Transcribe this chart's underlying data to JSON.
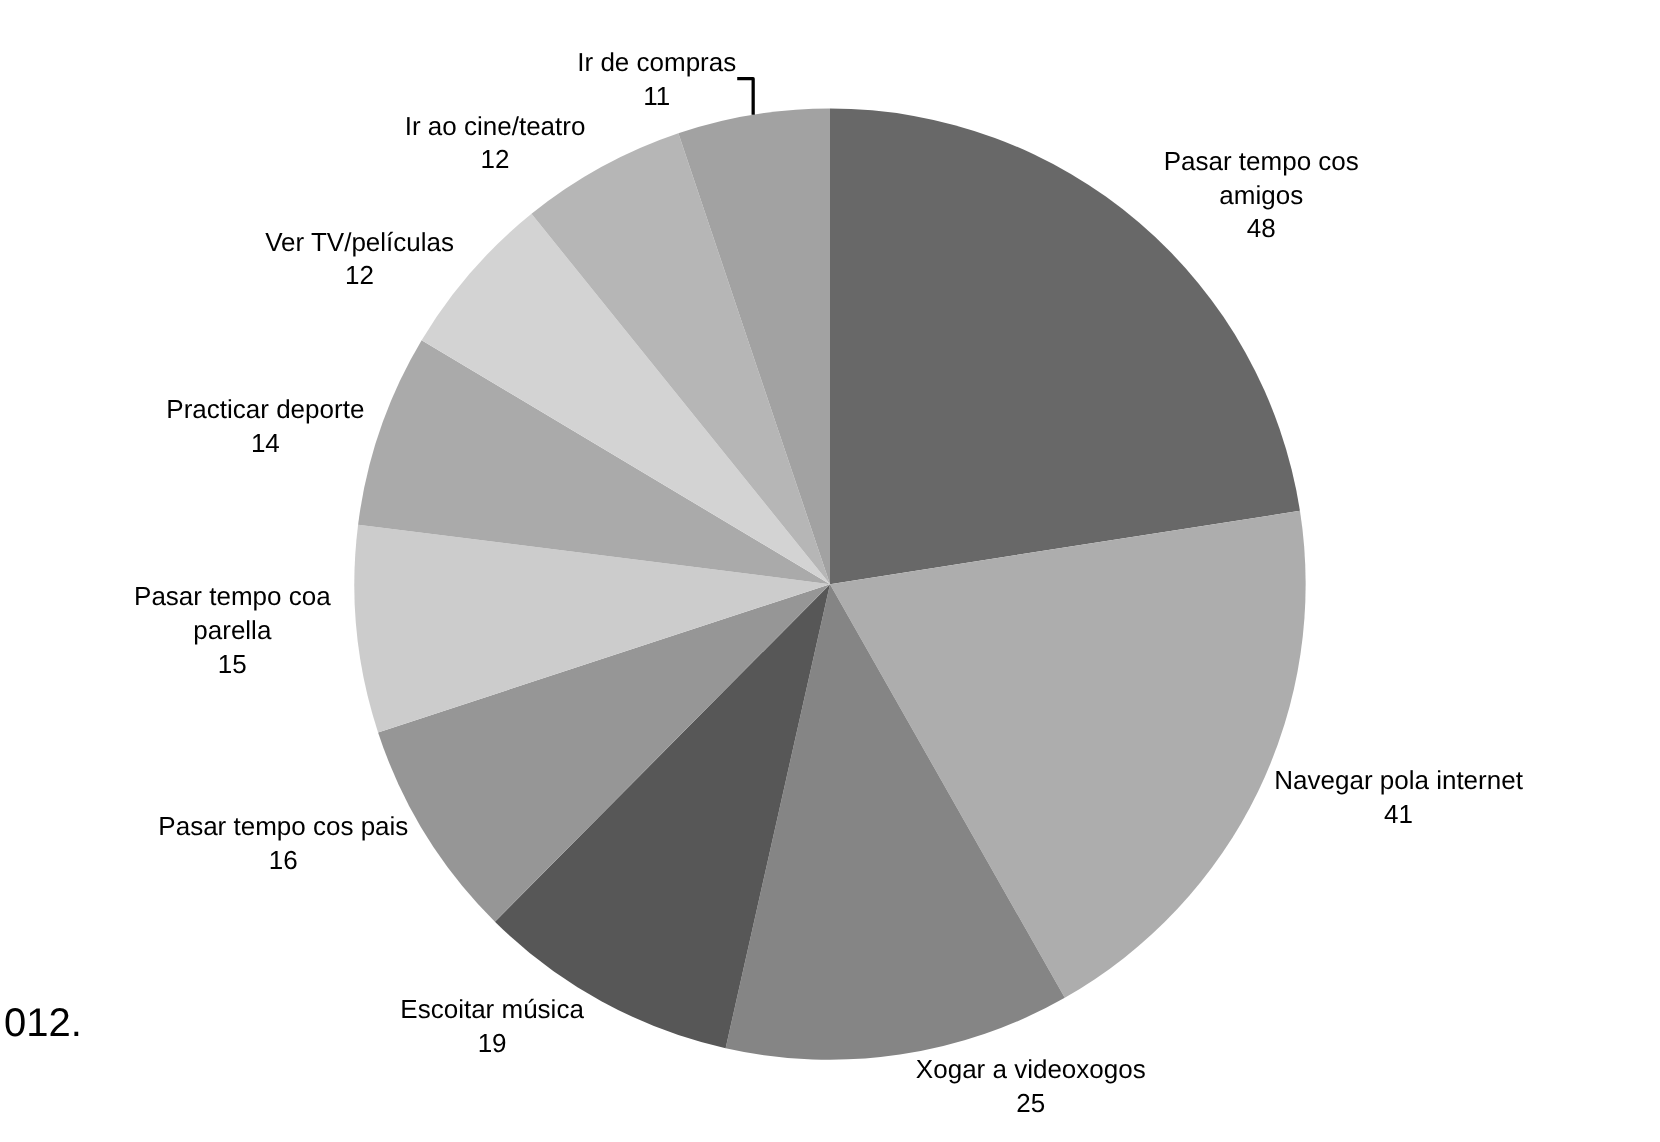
{
  "chart_data": {
    "type": "pie",
    "categories": [
      "Pasar tempo cos amigos",
      "Navegar pola internet",
      "Xogar a videoxogos",
      "Escoitar música",
      "Pasar tempo cos pais",
      "Pasar tempo coa parella",
      "Practicar deporte",
      "Ver TV/películas",
      "Ir ao cine/teatro",
      "Ir de compras"
    ],
    "values": [
      48,
      41,
      25,
      19,
      16,
      15,
      14,
      12,
      12,
      11
    ],
    "colors": [
      "#686868",
      "#adadad",
      "#858585",
      "#575757",
      "#969696",
      "#cccccc",
      "#aaaaaa",
      "#d3d3d3",
      "#b6b6b6",
      "#a2a2a2"
    ],
    "data_labels": true,
    "annotations": [
      "012."
    ]
  }
}
